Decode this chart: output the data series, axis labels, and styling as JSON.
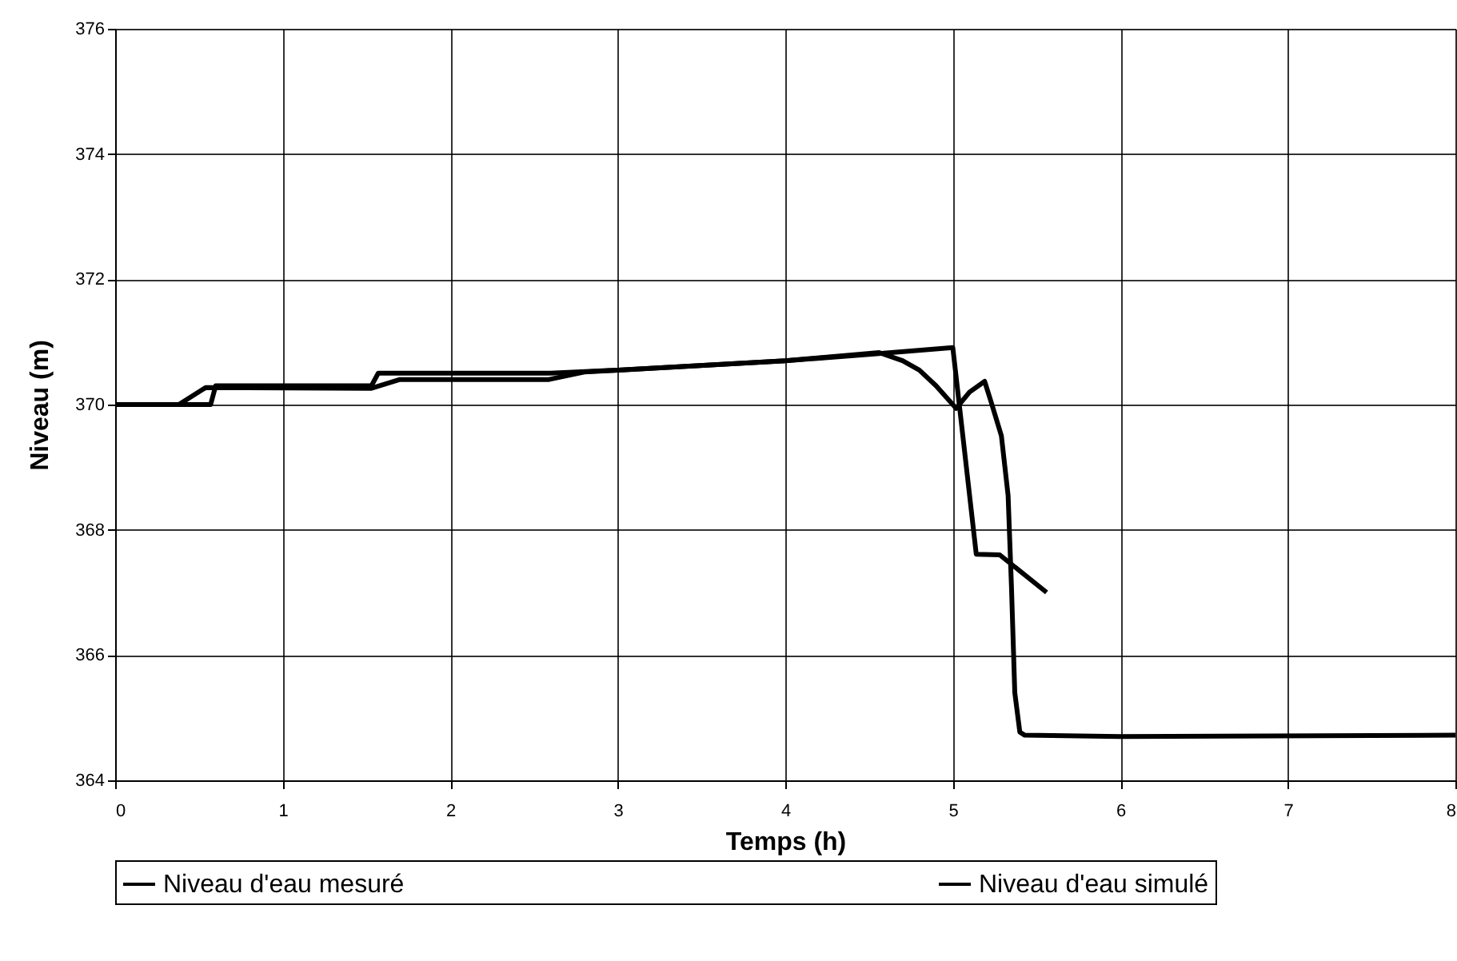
{
  "chart_data": {
    "type": "line",
    "xlabel": "Temps (h)",
    "ylabel": "Niveau (m)",
    "xlim": [
      0,
      8
    ],
    "ylim": [
      364,
      376
    ],
    "xticks": [
      0,
      1,
      2,
      3,
      4,
      5,
      6,
      7,
      8
    ],
    "yticks": [
      364,
      366,
      368,
      370,
      372,
      374,
      376
    ],
    "grid": true,
    "legend": "bottom",
    "marker": "none",
    "line_style": "solid",
    "series": [
      {
        "name": "Niveau d'eau mesuré",
        "color": "#000000",
        "x": [
          0,
          0.57,
          0.6,
          1.53,
          1.57,
          2.6,
          3,
          4,
          4.5,
          5.0,
          5.14,
          5.28,
          5.56
        ],
        "values": [
          370,
          370,
          370.3,
          370.3,
          370.5,
          370.5,
          370.55,
          370.7,
          370.8,
          370.91,
          367.61,
          367.6,
          367.0
        ]
      },
      {
        "name": "Niveau d'eau simulé",
        "color": "#000000",
        "x": [
          0,
          0.38,
          0.54,
          1.53,
          1.7,
          2.59,
          2.8,
          3,
          4,
          4.56,
          4.7,
          4.8,
          4.9,
          5.02,
          5.1,
          5.19,
          5.23,
          5.29,
          5.33,
          5.35,
          5.37,
          5.4,
          5.43,
          6,
          8
        ],
        "values": [
          370,
          370,
          370.27,
          370.26,
          370.4,
          370.4,
          370.52,
          370.55,
          370.7,
          370.83,
          370.7,
          370.55,
          370.3,
          369.94,
          370.2,
          370.37,
          370.03,
          369.5,
          368.55,
          367.1,
          365.4,
          364.77,
          364.72,
          364.7,
          364.72
        ]
      }
    ]
  }
}
